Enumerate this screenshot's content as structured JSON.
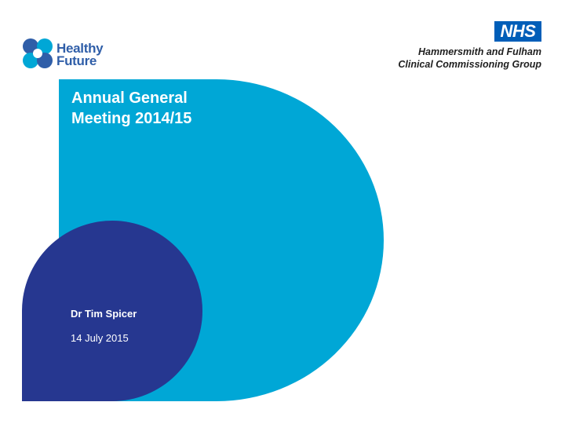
{
  "colors": {
    "cyan": "#00a7d6",
    "navy": "#263790",
    "nhs_blue": "#005eb8",
    "healthy_future_blue": "#2f5ea8"
  },
  "healthy_future_logo": {
    "line1": "Healthy",
    "line2": "Future",
    "icon": "healthy-future-flower-icon"
  },
  "nhs_logo": {
    "badge": "NHS",
    "org_line1": "Hammersmith and Fulham",
    "org_line2": "Clinical Commissioning Group"
  },
  "slide": {
    "title_line1": "Annual General",
    "title_line2": "Meeting 2014/15",
    "presenter": "Dr Tim Spicer",
    "date": "14 July 2015"
  }
}
